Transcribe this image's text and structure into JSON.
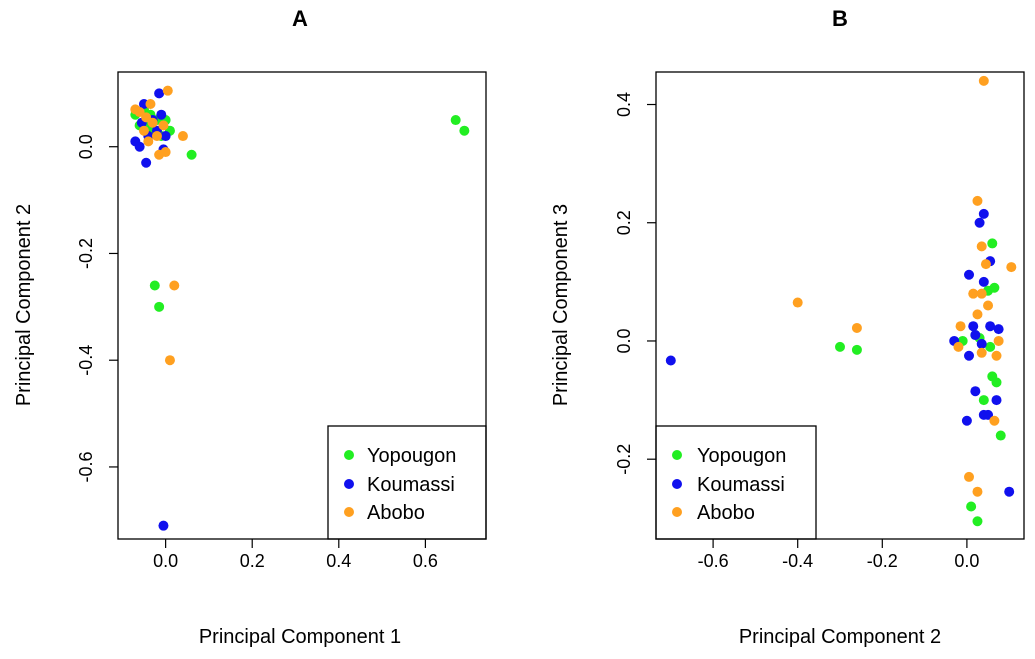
{
  "chart_data": [
    {
      "type": "scatter",
      "title": "A",
      "xlabel": "Principal Component 1",
      "ylabel": "Principal Component 2",
      "xlim": [
        -0.11,
        0.74
      ],
      "ylim": [
        -0.735,
        0.14
      ],
      "xticks": [
        0.0,
        0.2,
        0.4,
        0.6
      ],
      "xtick_labels": [
        "0.0",
        "0.2",
        "0.4",
        "0.6"
      ],
      "yticks": [
        0.0,
        -0.2,
        -0.4,
        -0.6
      ],
      "ytick_labels": [
        "0.0",
        "-0.2",
        "-0.4",
        "-0.6"
      ],
      "legend": {
        "position": "bottom-right",
        "entries": [
          "Yopougon",
          "Koumassi",
          "Abobo"
        ]
      },
      "series": [
        {
          "name": "Yopougon",
          "color": "#22ee22",
          "points": [
            [
              -0.07,
              0.06
            ],
            [
              -0.05,
              0.07
            ],
            [
              -0.04,
              0.04
            ],
            [
              -0.03,
              0.03
            ],
            [
              -0.02,
              0.05
            ],
            [
              -0.01,
              0.02
            ],
            [
              0.0,
              0.05
            ],
            [
              0.01,
              0.03
            ],
            [
              0.06,
              -0.015
            ],
            [
              -0.06,
              0.04
            ],
            [
              -0.035,
              0.06
            ],
            [
              0.67,
              0.05
            ],
            [
              0.69,
              0.03
            ],
            [
              -0.025,
              -0.26
            ],
            [
              -0.015,
              -0.3
            ]
          ]
        },
        {
          "name": "Koumassi",
          "color": "#1010ee",
          "points": [
            [
              -0.07,
              0.01
            ],
            [
              -0.06,
              0.0
            ],
            [
              -0.05,
              0.08
            ],
            [
              -0.04,
              0.02
            ],
            [
              -0.03,
              0.05
            ],
            [
              -0.02,
              0.03
            ],
            [
              -0.015,
              0.1
            ],
            [
              -0.01,
              0.06
            ],
            [
              -0.005,
              -0.005
            ],
            [
              0.0,
              0.02
            ],
            [
              -0.045,
              -0.03
            ],
            [
              -0.055,
              0.045
            ],
            [
              -0.005,
              -0.71
            ]
          ]
        },
        {
          "name": "Abobo",
          "color": "#ffa020",
          "points": [
            [
              -0.07,
              0.07
            ],
            [
              -0.06,
              0.065
            ],
            [
              -0.05,
              0.03
            ],
            [
              -0.04,
              0.01
            ],
            [
              -0.035,
              0.08
            ],
            [
              -0.03,
              0.045
            ],
            [
              -0.02,
              0.02
            ],
            [
              -0.015,
              -0.015
            ],
            [
              -0.005,
              0.04
            ],
            [
              0.0,
              -0.01
            ],
            [
              0.005,
              0.105
            ],
            [
              0.04,
              0.02
            ],
            [
              -0.045,
              0.055
            ],
            [
              0.02,
              -0.26
            ],
            [
              0.01,
              -0.4
            ]
          ]
        }
      ]
    },
    {
      "type": "scatter",
      "title": "B",
      "xlabel": "Principal Component 2",
      "ylabel": "Principal Component 3",
      "xlim": [
        -0.735,
        0.135
      ],
      "ylim": [
        -0.335,
        0.455
      ],
      "xticks": [
        -0.6,
        -0.4,
        -0.2,
        0.0
      ],
      "xtick_labels": [
        "-0.6",
        "-0.4",
        "-0.2",
        "0.0"
      ],
      "yticks": [
        0.4,
        0.2,
        0.0,
        -0.2
      ],
      "ytick_labels": [
        "0.4",
        "0.2",
        "0.0",
        "-0.2"
      ],
      "legend": {
        "position": "bottom-left",
        "entries": [
          "Yopougon",
          "Koumassi",
          "Abobo"
        ]
      },
      "series": [
        {
          "name": "Yopougon",
          "color": "#22ee22",
          "points": [
            [
              -0.3,
              -0.01
            ],
            [
              -0.26,
              -0.015
            ],
            [
              0.06,
              0.165
            ],
            [
              0.065,
              0.09
            ],
            [
              0.05,
              0.085
            ],
            [
              0.02,
              0.01
            ],
            [
              0.03,
              0.005
            ],
            [
              0.055,
              -0.01
            ],
            [
              -0.01,
              0.0
            ],
            [
              0.06,
              -0.06
            ],
            [
              0.07,
              -0.07
            ],
            [
              0.04,
              -0.1
            ],
            [
              0.08,
              -0.16
            ],
            [
              0.01,
              -0.28
            ],
            [
              0.025,
              -0.305
            ]
          ]
        },
        {
          "name": "Koumassi",
          "color": "#1010ee",
          "points": [
            [
              -0.7,
              -0.033
            ],
            [
              0.04,
              0.215
            ],
            [
              0.03,
              0.2
            ],
            [
              0.055,
              0.135
            ],
            [
              0.005,
              0.112
            ],
            [
              0.04,
              0.1
            ],
            [
              0.015,
              0.025
            ],
            [
              0.02,
              0.01
            ],
            [
              0.055,
              0.025
            ],
            [
              0.075,
              0.02
            ],
            [
              -0.03,
              0.0
            ],
            [
              0.035,
              -0.005
            ],
            [
              0.005,
              -0.025
            ],
            [
              0.02,
              -0.085
            ],
            [
              0.07,
              -0.1
            ],
            [
              0.04,
              -0.125
            ],
            [
              0.05,
              -0.125
            ],
            [
              0.0,
              -0.135
            ],
            [
              0.1,
              -0.255
            ]
          ]
        },
        {
          "name": "Abobo",
          "color": "#ffa020",
          "points": [
            [
              0.04,
              0.44
            ],
            [
              -0.4,
              0.065
            ],
            [
              -0.26,
              0.022
            ],
            [
              0.025,
              0.237
            ],
            [
              0.035,
              0.16
            ],
            [
              0.045,
              0.13
            ],
            [
              0.105,
              0.125
            ],
            [
              0.015,
              0.08
            ],
            [
              0.035,
              0.08
            ],
            [
              0.05,
              0.06
            ],
            [
              0.025,
              0.045
            ],
            [
              -0.015,
              0.025
            ],
            [
              -0.02,
              -0.01
            ],
            [
              0.035,
              -0.02
            ],
            [
              0.075,
              0.0
            ],
            [
              0.07,
              -0.025
            ],
            [
              0.065,
              -0.135
            ],
            [
              0.005,
              -0.23
            ],
            [
              0.025,
              -0.255
            ]
          ]
        }
      ]
    }
  ]
}
